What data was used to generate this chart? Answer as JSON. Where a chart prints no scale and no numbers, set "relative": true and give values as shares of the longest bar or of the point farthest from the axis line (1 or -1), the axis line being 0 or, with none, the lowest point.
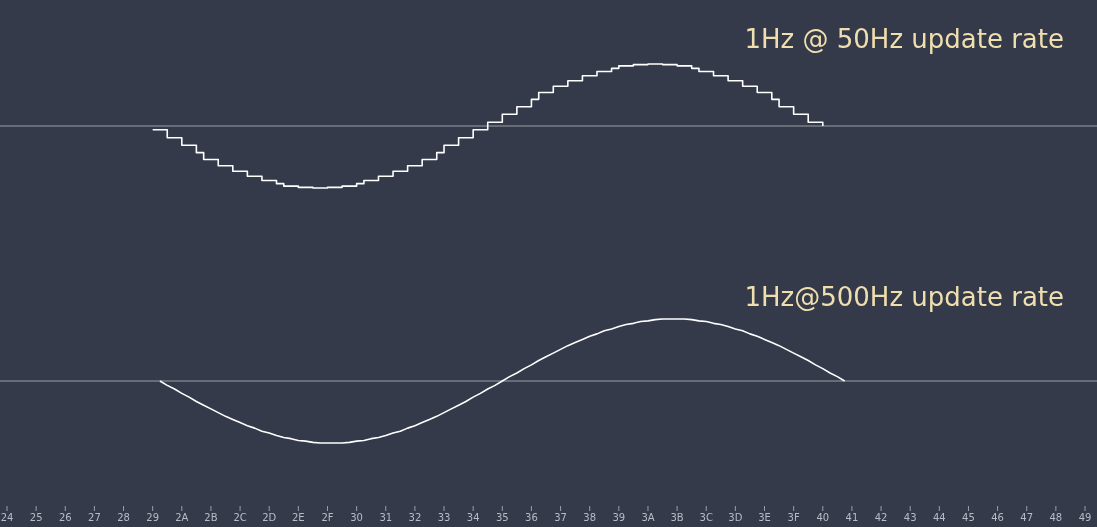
{
  "chart_data": [
    {
      "type": "step",
      "title": "1Hz @ 50Hz update rate",
      "relative": true,
      "color": "#ffffff",
      "categories": [
        null,
        null,
        null,
        null,
        null,
        null,
        null,
        null,
        null,
        null,
        null,
        null,
        null,
        null,
        null,
        null,
        null,
        null,
        null,
        null,
        null,
        null,
        null,
        null,
        null,
        null,
        null,
        null,
        null,
        null,
        null,
        null,
        null,
        null,
        null,
        null,
        null,
        null,
        null,
        null,
        null,
        null,
        null,
        null,
        null,
        null,
        null,
        null,
        null,
        null,
        null,
        null,
        null,
        null,
        null,
        null,
        null,
        null,
        null,
        null,
        null,
        null,
        null,
        null,
        null,
        null,
        null,
        null,
        null,
        null,
        null,
        null,
        null,
        null,
        null,
        null,
        null,
        null,
        null,
        null,
        null,
        null,
        null,
        null,
        null,
        null,
        null,
        null,
        null,
        null,
        null,
        null,
        null,
        null,
        null,
        null,
        null,
        null,
        null,
        null,
        null,
        null,
        null,
        null,
        null,
        null,
        null,
        null,
        null,
        null,
        null,
        null,
        null,
        null,
        null,
        null,
        null,
        null,
        null,
        null,
        null,
        null,
        null,
        null,
        null,
        null,
        null,
        null,
        null,
        null,
        null,
        null,
        null,
        null,
        null,
        null,
        null,
        null,
        null,
        null,
        null,
        null,
        null,
        null,
        null,
        null,
        null,
        null,
        null
      ],
      "values": [
        null,
        null,
        null,
        null,
        null,
        null,
        null,
        null,
        null,
        null,
        null,
        null,
        null,
        null,
        null,
        null,
        null,
        null,
        null,
        null,
        -0.06,
        -0.06,
        -0.19,
        -0.19,
        -0.31,
        -0.31,
        -0.43,
        -0.54,
        -0.54,
        -0.64,
        -0.64,
        -0.73,
        -0.73,
        -0.81,
        -0.81,
        -0.88,
        -0.88,
        -0.93,
        -0.97,
        -0.97,
        -0.99,
        -0.99,
        -1,
        -1,
        -0.99,
        -0.99,
        -0.97,
        -0.97,
        -0.93,
        -0.88,
        -0.88,
        -0.81,
        -0.81,
        -0.73,
        -0.73,
        -0.64,
        -0.64,
        -0.54,
        -0.54,
        -0.43,
        -0.31,
        -0.31,
        -0.19,
        -0.19,
        -0.06,
        -0.06,
        0.06,
        0.06,
        0.19,
        0.19,
        0.31,
        0.31,
        0.43,
        0.54,
        0.54,
        0.64,
        0.64,
        0.73,
        0.73,
        0.81,
        0.81,
        0.88,
        0.88,
        0.93,
        0.97,
        0.97,
        0.99,
        0.99,
        1,
        1,
        0.99,
        0.99,
        0.97,
        0.97,
        0.93,
        0.88,
        0.88,
        0.81,
        0.81,
        0.73,
        0.73,
        0.64,
        0.64,
        0.54,
        0.54,
        0.43,
        0.31,
        0.31,
        0.19,
        0.19,
        0.06,
        0.06,
        0,
        null,
        null,
        null,
        null,
        null,
        null,
        null,
        null,
        null,
        null,
        null,
        null,
        null,
        null,
        null,
        null,
        null,
        null,
        null,
        null,
        null,
        null,
        null,
        null,
        null,
        null,
        null,
        null,
        null,
        null,
        null,
        null,
        null,
        null,
        null,
        null
      ]
    },
    {
      "type": "line",
      "title": "1Hz@500Hz update rate",
      "relative": true,
      "color": "#ffffff",
      "tick_labels": "x",
      "categories": [
        "24",
        null,
        null,
        null,
        "25",
        null,
        null,
        null,
        "26",
        null,
        null,
        null,
        "27",
        null,
        null,
        null,
        "28",
        null,
        null,
        null,
        "29",
        null,
        null,
        null,
        "2A",
        null,
        null,
        null,
        "2B",
        null,
        null,
        null,
        "2C",
        null,
        null,
        null,
        "2D",
        null,
        null,
        null,
        "2E",
        null,
        null,
        null,
        "2F",
        null,
        null,
        null,
        "30",
        null,
        null,
        null,
        "31",
        null,
        null,
        null,
        "32",
        null,
        null,
        null,
        "33",
        null,
        null,
        null,
        "34",
        null,
        null,
        null,
        "35",
        null,
        null,
        null,
        "36",
        null,
        null,
        null,
        "37",
        null,
        null,
        null,
        "38",
        null,
        null,
        null,
        "39",
        null,
        null,
        null,
        "3A",
        null,
        null,
        null,
        "3B",
        null,
        null,
        null,
        "3C",
        null,
        null,
        null,
        "3D",
        null,
        null,
        null,
        "3E",
        null,
        null,
        null,
        "3F",
        null,
        null,
        null,
        "40",
        null,
        null,
        null,
        "41",
        null,
        null,
        null,
        "42",
        null,
        null,
        null,
        "43",
        null,
        null,
        null,
        "44",
        null,
        null,
        null,
        "45",
        null,
        null,
        null,
        "46",
        null,
        null,
        null,
        "47",
        null,
        null,
        null,
        "48",
        null,
        null,
        null,
        "49"
      ],
      "values": [
        null,
        null,
        null,
        null,
        null,
        null,
        null,
        null,
        null,
        null,
        null,
        null,
        null,
        null,
        null,
        null,
        null,
        null,
        null,
        null,
        null,
        0,
        -0.07,
        -0.13,
        -0.2,
        -0.26,
        -0.33,
        -0.39,
        -0.45,
        -0.51,
        -0.57,
        -0.62,
        -0.67,
        -0.72,
        -0.76,
        -0.81,
        -0.84,
        -0.88,
        -0.91,
        -0.93,
        -0.96,
        -0.97,
        -0.99,
        -1,
        -1,
        -1,
        -1,
        -0.99,
        -0.97,
        -0.96,
        -0.93,
        -0.91,
        -0.88,
        -0.84,
        -0.81,
        -0.76,
        -0.72,
        -0.67,
        -0.62,
        -0.57,
        -0.51,
        -0.45,
        -0.39,
        -0.33,
        -0.26,
        -0.2,
        -0.13,
        -0.07,
        0,
        0.07,
        0.13,
        0.2,
        0.26,
        0.33,
        0.39,
        0.45,
        0.51,
        0.57,
        0.62,
        0.67,
        0.72,
        0.76,
        0.81,
        0.84,
        0.88,
        0.91,
        0.93,
        0.96,
        0.97,
        0.99,
        1,
        1,
        1,
        1,
        0.99,
        0.97,
        0.96,
        0.93,
        0.91,
        0.88,
        0.84,
        0.81,
        0.76,
        0.72,
        0.67,
        0.62,
        0.57,
        0.51,
        0.45,
        0.39,
        0.33,
        0.26,
        0.2,
        0.13,
        0.07,
        0,
        null,
        null,
        null,
        null,
        null,
        null,
        null,
        null,
        null,
        null,
        null,
        null,
        null,
        null,
        null,
        null,
        null,
        null,
        null,
        null,
        null,
        null,
        null,
        null,
        null,
        null,
        null,
        null,
        null,
        null,
        null,
        null,
        null
      ]
    }
  ]
}
